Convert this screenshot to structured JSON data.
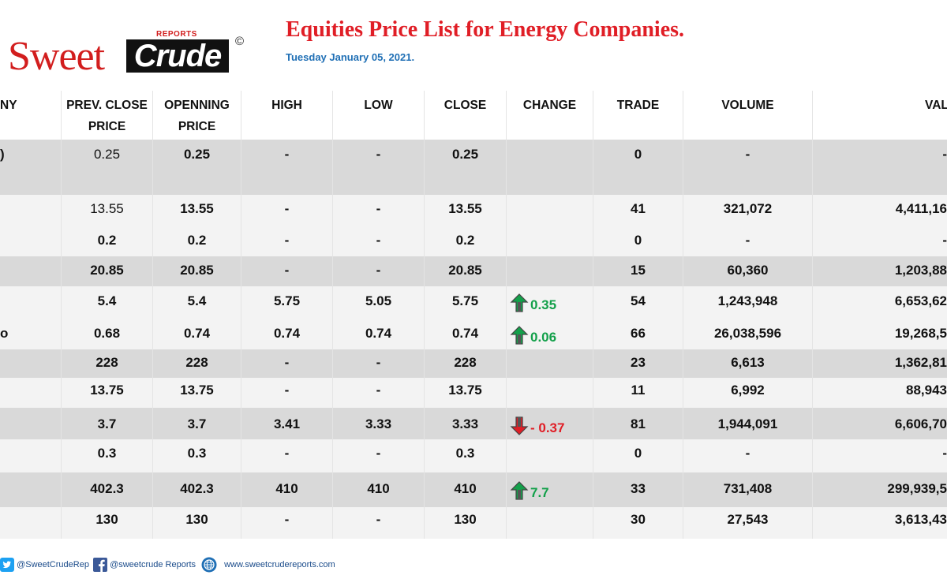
{
  "header": {
    "logo_main": "Sweet",
    "logo_bold": "Crude",
    "logo_sub": "REPORTS",
    "logo_mark": "©",
    "title": "Equities Price List for Energy Companies.",
    "date": "Tuesday January 05, 2021."
  },
  "columns": [
    "NY",
    "PREV. CLOSE PRICE",
    "OPENNING PRICE",
    "HIGH",
    "LOW",
    "CLOSE",
    "CHANGE",
    "TRADE",
    "VOLUME",
    "VALU"
  ],
  "column_lines": {
    "prev": [
      "PREV. CLOSE",
      "PRICE"
    ],
    "open": [
      "OPENNING",
      "PRICE"
    ]
  },
  "rows": [
    {
      "company": ")",
      "prev": "0.25",
      "open": "0.25",
      "high": "-",
      "low": "-",
      "close": "0.25",
      "change": "",
      "dir": "",
      "trade": "0",
      "volume": "-",
      "value": "-"
    },
    {
      "company": "",
      "prev": "13.55",
      "open": "13.55",
      "high": "-",
      "low": "-",
      "close": "13.55",
      "change": "",
      "dir": "",
      "trade": "41",
      "volume": "321,072",
      "value": "4,411,16"
    },
    {
      "company": "",
      "prev": "0.2",
      "open": "0.2",
      "high": "-",
      "low": "-",
      "close": "0.2",
      "change": "",
      "dir": "",
      "trade": "0",
      "volume": "-",
      "value": "-"
    },
    {
      "company": "",
      "prev": "20.85",
      "open": "20.85",
      "high": "-",
      "low": "-",
      "close": "20.85",
      "change": "",
      "dir": "",
      "trade": "15",
      "volume": "60,360",
      "value": "1,203,88"
    },
    {
      "company": "",
      "prev": "5.4",
      "open": "5.4",
      "high": "5.75",
      "low": "5.05",
      "close": "5.75",
      "change": "0.35",
      "dir": "up",
      "trade": "54",
      "volume": "1,243,948",
      "value": "6,653,62"
    },
    {
      "company": "o",
      "prev": "0.68",
      "open": "0.74",
      "high": "0.74",
      "low": "0.74",
      "close": "0.74",
      "change": "0.06",
      "dir": "up",
      "trade": "66",
      "volume": "26,038,596",
      "value": "19,268,5"
    },
    {
      "company": "",
      "prev": "228",
      "open": "228",
      "high": "-",
      "low": "-",
      "close": "228",
      "change": "",
      "dir": "",
      "trade": "23",
      "volume": "6,613",
      "value": "1,362,81"
    },
    {
      "company": "",
      "prev": "13.75",
      "open": "13.75",
      "high": "-",
      "low": "-",
      "close": "13.75",
      "change": "",
      "dir": "",
      "trade": "11",
      "volume": "6,992",
      "value": "88,943"
    },
    {
      "company": "",
      "prev": "3.7",
      "open": "3.7",
      "high": "3.41",
      "low": "3.33",
      "close": "3.33",
      "change": "- 0.37",
      "dir": "down",
      "trade": "81",
      "volume": "1,944,091",
      "value": "6,606,70"
    },
    {
      "company": "",
      "prev": "0.3",
      "open": "0.3",
      "high": "-",
      "low": "-",
      "close": "0.3",
      "change": "",
      "dir": "",
      "trade": "0",
      "volume": "-",
      "value": "-"
    },
    {
      "company": "",
      "prev": "402.3",
      "open": "402.3",
      "high": "410",
      "low": "410",
      "close": "410",
      "change": "7.7",
      "dir": "up",
      "trade": "33",
      "volume": "731,408",
      "value": "299,939,5"
    },
    {
      "company": "",
      "prev": "130",
      "open": "130",
      "high": "-",
      "low": "-",
      "close": "130",
      "change": "",
      "dir": "",
      "trade": "30",
      "volume": "27,543",
      "value": "3,613,43"
    }
  ],
  "footer": {
    "twitter": "@SweetCrudeRep",
    "facebook": "@sweetcrude Reports",
    "website": "www.sweetcrudereports.com",
    "twitter_icon": "twitter-icon",
    "facebook_icon": "facebook-icon",
    "globe_icon": "globe-icon"
  },
  "colors": {
    "up": "#13a04a",
    "down": "#e01e26",
    "title": "#e01e26",
    "date": "#1f6fb5",
    "row_gray": "#d9d9d9",
    "row_light": "#f3f3f3"
  }
}
